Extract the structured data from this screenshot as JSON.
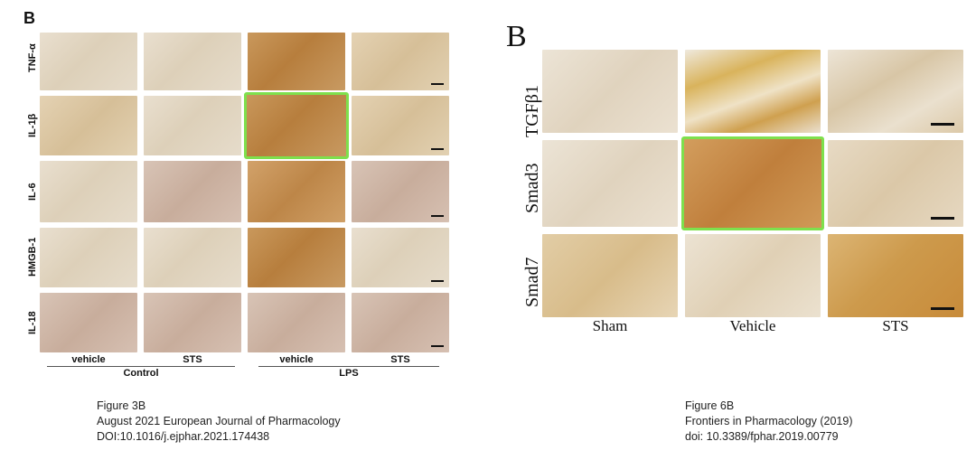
{
  "left_figure": {
    "panel_letter": "B",
    "row_labels": [
      "TNF-α",
      "IL-1β",
      "IL-6",
      "HMGB-1",
      "IL-18"
    ],
    "column_labels": [
      "vehicle",
      "STS",
      "vehicle",
      "STS"
    ],
    "group_labels": [
      "Control",
      "LPS"
    ],
    "highlighted_cell": {
      "row": "IL-1β",
      "column": "LPS vehicle"
    },
    "caption_lines": [
      "Figure 3B",
      "August 2021 European Journal of Pharmacology",
      "DOI:10.1016/j.ejphar.2021.174438"
    ]
  },
  "right_figure": {
    "panel_letter": "B",
    "row_labels": [
      "TGFβ1",
      "Smad3",
      "Smad7"
    ],
    "column_labels": [
      "Sham",
      "Vehicle",
      "STS"
    ],
    "highlighted_cell": {
      "row": "Smad3",
      "column": "Vehicle"
    },
    "caption_lines": [
      "Figure 6B",
      "Frontiers in Pharmacology (2019)",
      "doi: 10.3389/fphar.2019.00779"
    ]
  },
  "colors": {
    "highlight": "#7ee04d",
    "stain_dark": "#b77e3d",
    "stain_light": "#e6dccb"
  }
}
